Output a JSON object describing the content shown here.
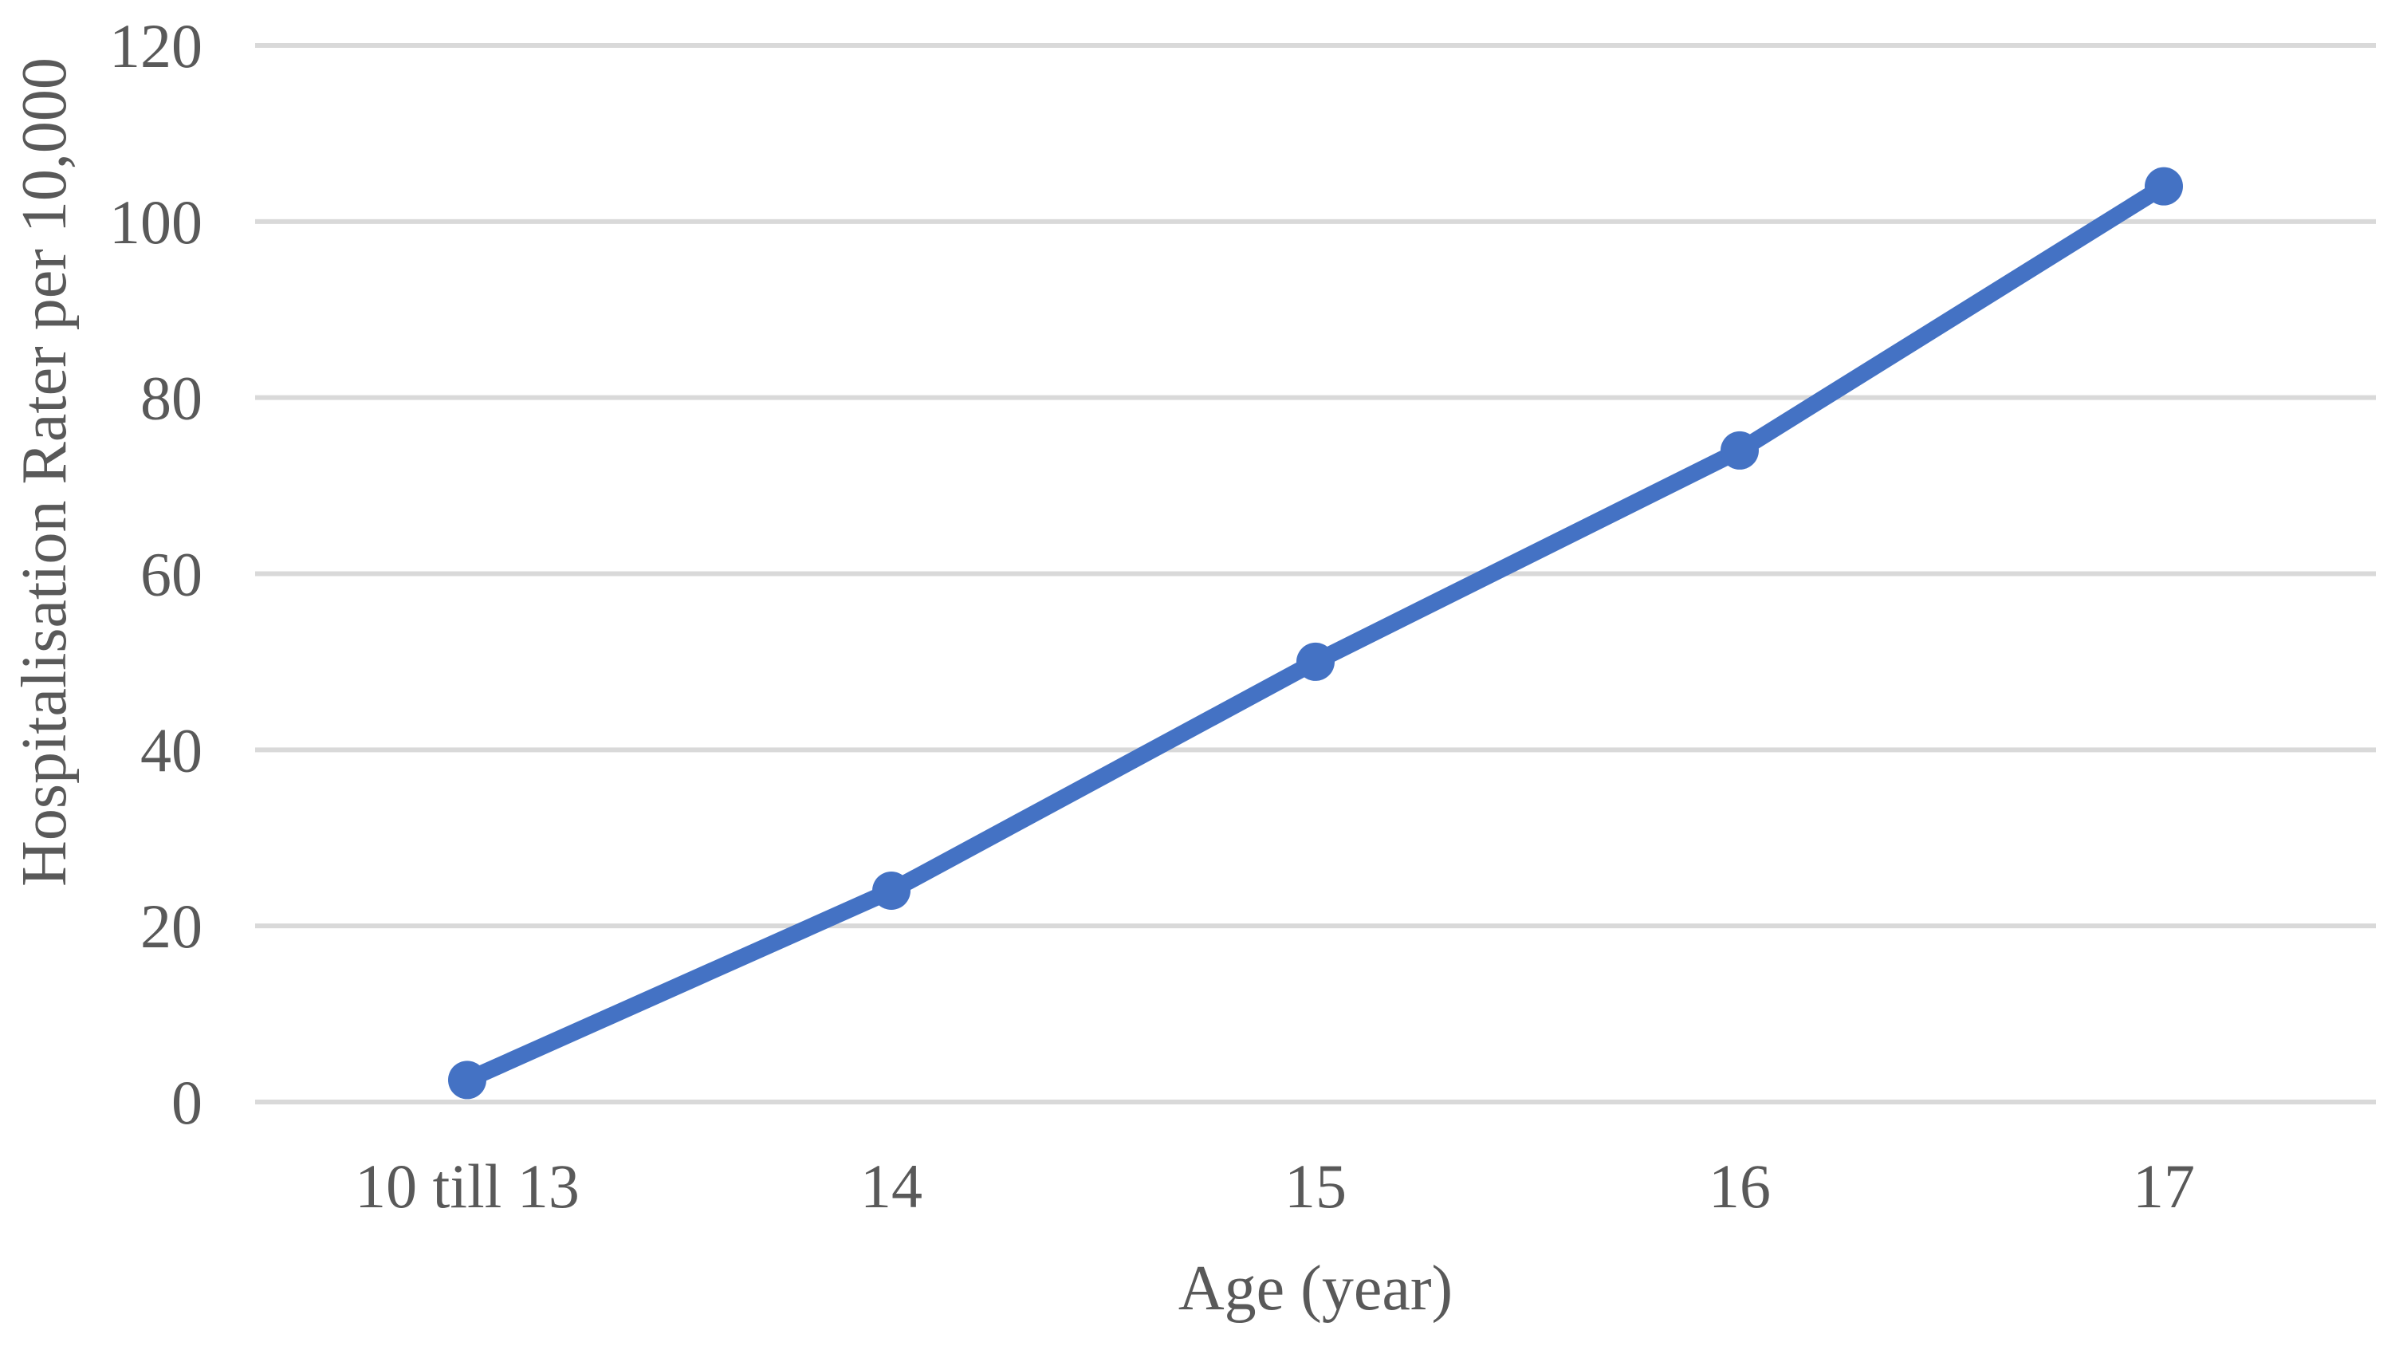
{
  "chart_data": {
    "type": "line",
    "title": "",
    "categories": [
      "10 till 13",
      "14",
      "15",
      "16",
      "17"
    ],
    "values": [
      2.5,
      24,
      50,
      74,
      104
    ],
    "xlabel": "Age (year)",
    "ylabel": "Hospitalisation Rater per 10,000",
    "ylim": [
      0,
      120
    ],
    "yticks": [
      0,
      20,
      40,
      60,
      80,
      100,
      120
    ],
    "grid": true,
    "legend": "none",
    "marker": "circle",
    "colors": {
      "line": "#4472C4",
      "marker": "#4472C4",
      "gridline": "#D9D9D9",
      "text": "#595959",
      "background": "#FFFFFF"
    }
  }
}
